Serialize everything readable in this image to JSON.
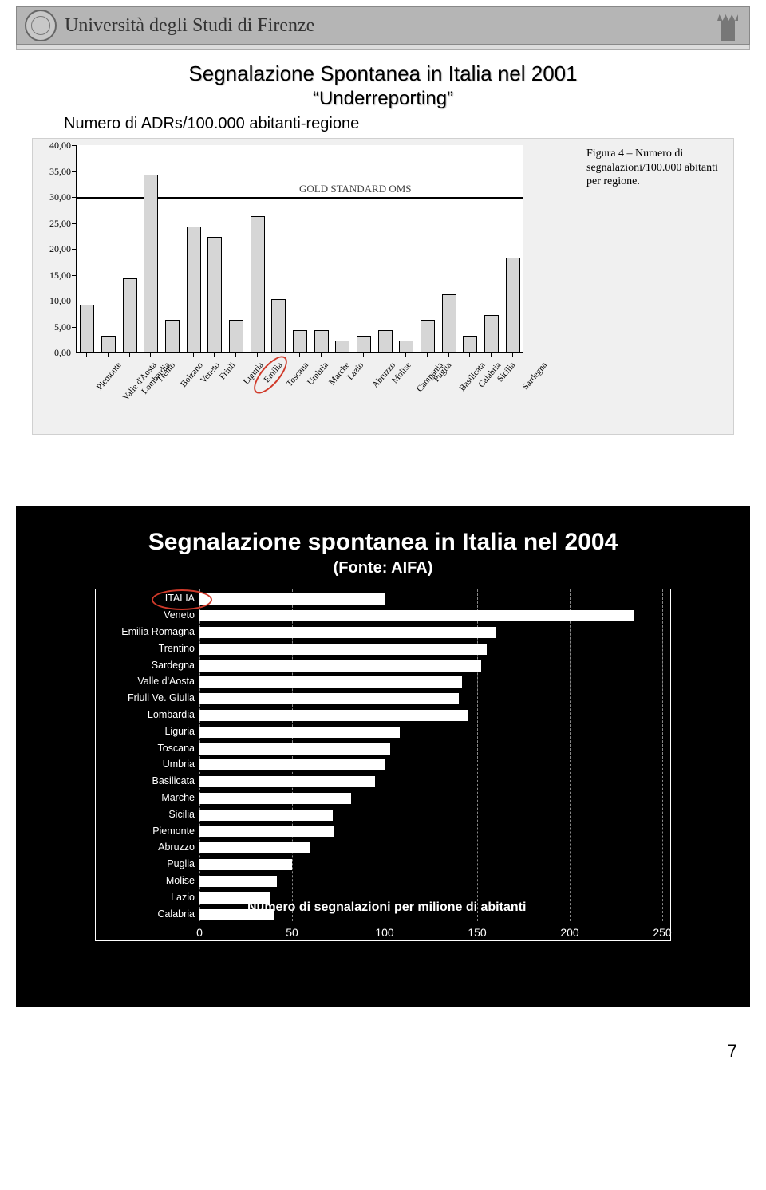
{
  "header": {
    "university_text": "Università degli Studi di Firenze"
  },
  "section1": {
    "title_line1": "Segnalazione Spontanea in Italia nel 2001",
    "title_line2": "“Underreporting”",
    "subtitle": "Numero di ADRs/100.000 abitanti-regione",
    "fig_caption": "Figura 4 – Numero di segnalazioni/100.000 abitanti per regione.",
    "gold_label": "GOLD STANDARD OMS",
    "chart": {
      "type": "bar",
      "ylim": [
        0,
        40
      ],
      "ytick_step": 5,
      "yticks": [
        0,
        5,
        10,
        15,
        20,
        25,
        30,
        35,
        40
      ],
      "ytick_labels": [
        "0,00",
        "5,00",
        "10,00",
        "15,00",
        "20,00",
        "25,00",
        "30,00",
        "35,00",
        "40,00"
      ],
      "gold_standard_value": 30,
      "bar_color": "#d6d6d6",
      "bar_border": "#000000",
      "background_color": "#ffffff",
      "panel_color": "#f0f0f0",
      "categories": [
        "Piemonte",
        "Valle d'Aosta",
        "Lombardia",
        "Trento",
        "Bolzano",
        "Veneto",
        "Friuli",
        "Liguria",
        "Emilia",
        "Toscana",
        "Umbria",
        "Marche",
        "Lazio",
        "Abruzzo",
        "Molise",
        "Campania",
        "Puglia",
        "Basilicata",
        "Calabria",
        "Sicilia",
        "Sardegna"
      ],
      "values": [
        9,
        3,
        14,
        34,
        6,
        24,
        22,
        6,
        26,
        10,
        4,
        4,
        2,
        3,
        4,
        2,
        6,
        11,
        3,
        7,
        18
      ],
      "highlight_category": "Toscana",
      "highlight_color": "#d03a2a",
      "label_fontsize": 11,
      "tick_fontsize": 12
    }
  },
  "section2": {
    "title": "Segnalazione spontanea in Italia nel 2004",
    "subtitle": "(Fonte: AIFA)",
    "bottom_caption": "Numero di segnalazioni per milione di abitanti",
    "chart": {
      "type": "horizontal_bar",
      "xlim": [
        0,
        250
      ],
      "xtick_step": 50,
      "xticks": [
        0,
        50,
        100,
        150,
        200,
        250
      ],
      "background_color": "#000000",
      "bar_color": "#ffffff",
      "grid_color": "#888888",
      "text_color": "#ffffff",
      "categories": [
        "ITALIA",
        "Veneto",
        "Emilia Romagna",
        "Trentino",
        "Sardegna",
        "Valle d'Aosta",
        "Friuli Ve. Giulia",
        "Lombardia",
        "Liguria",
        "Toscana",
        "Umbria",
        "Basilicata",
        "Marche",
        "Sicilia",
        "Piemonte",
        "Abruzzo",
        "Puglia",
        "Molise",
        "Lazio",
        "Calabria"
      ],
      "values": [
        100,
        235,
        160,
        155,
        152,
        142,
        140,
        145,
        108,
        103,
        100,
        95,
        82,
        72,
        73,
        60,
        50,
        42,
        38,
        40
      ],
      "highlight_category": "ITALIA",
      "highlight_color": "#d03a2a",
      "label_fontsize": 12.5,
      "xtick_fontsize": 14
    }
  },
  "page_number": "7"
}
